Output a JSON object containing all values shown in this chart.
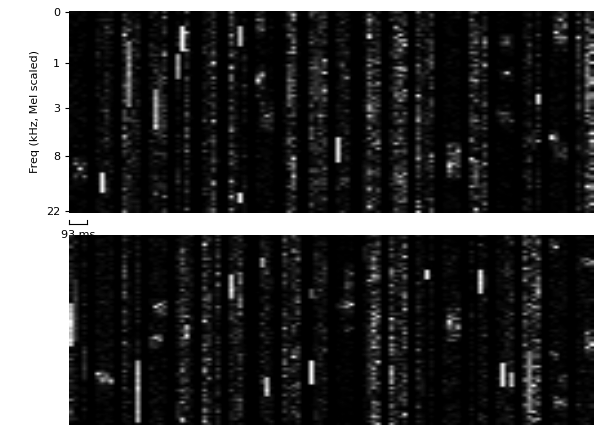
{
  "ylabel": "Freq (kHz, Mel scaled)",
  "xlabel_annotation": "93 ms",
  "yticks": [
    0,
    1,
    3,
    8,
    22
  ],
  "ytick_labels": [
    "0",
    "1",
    "3",
    "8",
    "22"
  ],
  "background_color": "#ffffff",
  "n_bases_row1": 20,
  "n_bases_row2": 20,
  "n_frames": 4,
  "n_freq_bins": 80,
  "seed": 42,
  "fig_width": 6.0,
  "fig_height": 4.43,
  "dpi": 100,
  "colormap": "gray_r"
}
